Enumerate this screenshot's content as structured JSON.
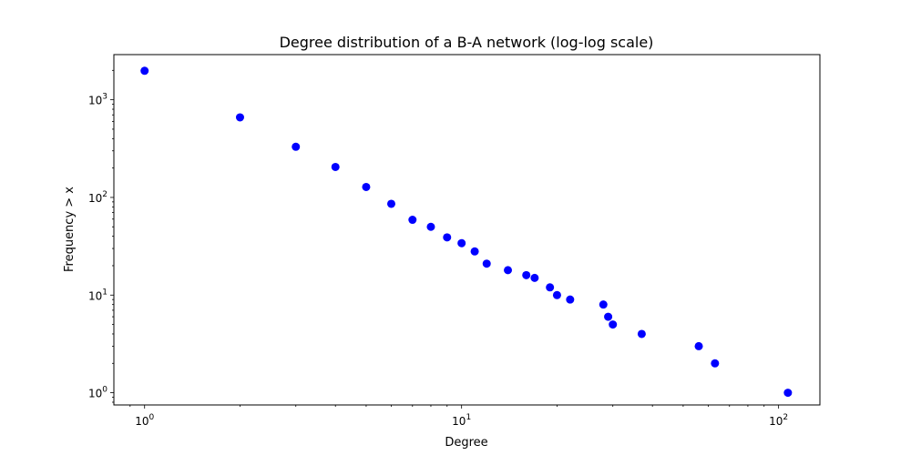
{
  "chart_data": {
    "type": "scatter",
    "title": "Degree distribution of a B-A network (log-log scale)",
    "xlabel": "Degree",
    "ylabel": "Frequency > x",
    "xscale": "log",
    "yscale": "log",
    "xlim": [
      0.8,
      135
    ],
    "ylim": [
      0.75,
      2900
    ],
    "grid": false,
    "marker_color": "#0000ff",
    "x_ticks": [
      {
        "value": 1,
        "base": "10",
        "exp": "0"
      },
      {
        "value": 10,
        "base": "10",
        "exp": "1"
      },
      {
        "value": 100,
        "base": "10",
        "exp": "2"
      }
    ],
    "y_ticks": [
      {
        "value": 1,
        "base": "10",
        "exp": "0"
      },
      {
        "value": 10,
        "base": "10",
        "exp": "1"
      },
      {
        "value": 100,
        "base": "10",
        "exp": "2"
      },
      {
        "value": 1000,
        "base": "10",
        "exp": "3"
      }
    ],
    "points": [
      {
        "x": 1,
        "y": 1980
      },
      {
        "x": 2,
        "y": 660
      },
      {
        "x": 3,
        "y": 330
      },
      {
        "x": 4,
        "y": 205
      },
      {
        "x": 5,
        "y": 128
      },
      {
        "x": 6,
        "y": 86
      },
      {
        "x": 7,
        "y": 59
      },
      {
        "x": 8,
        "y": 50
      },
      {
        "x": 9,
        "y": 39
      },
      {
        "x": 10,
        "y": 34
      },
      {
        "x": 11,
        "y": 28
      },
      {
        "x": 12,
        "y": 21
      },
      {
        "x": 14,
        "y": 18
      },
      {
        "x": 16,
        "y": 16
      },
      {
        "x": 17,
        "y": 15
      },
      {
        "x": 19,
        "y": 12
      },
      {
        "x": 20,
        "y": 10
      },
      {
        "x": 22,
        "y": 9
      },
      {
        "x": 28,
        "y": 8
      },
      {
        "x": 29,
        "y": 6
      },
      {
        "x": 30,
        "y": 5
      },
      {
        "x": 37,
        "y": 4
      },
      {
        "x": 56,
        "y": 3
      },
      {
        "x": 63,
        "y": 2
      },
      {
        "x": 107,
        "y": 1
      }
    ]
  }
}
